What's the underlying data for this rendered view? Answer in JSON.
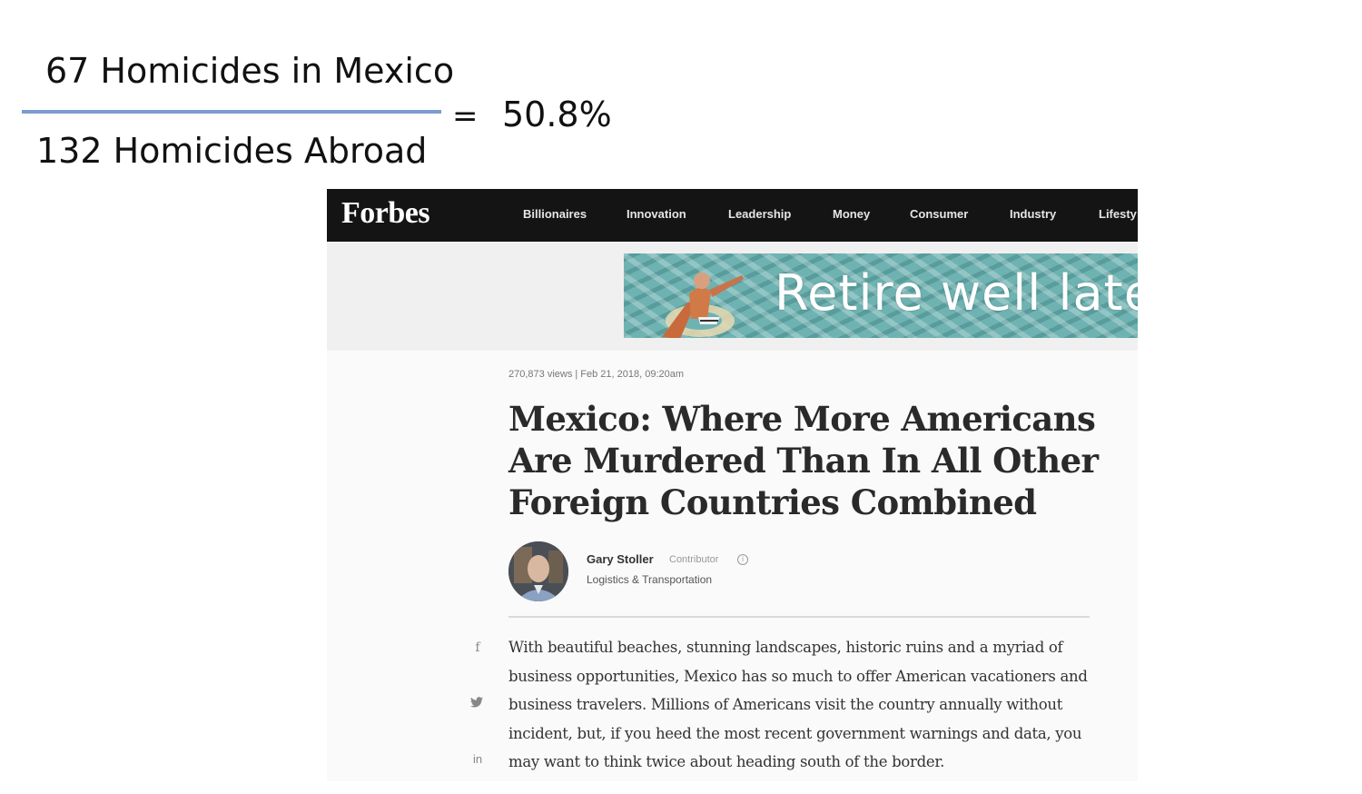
{
  "fraction": {
    "numerator": "67 Homicides in Mexico",
    "denominator": "132 Homicides Abroad",
    "equals": "=",
    "result": "50.8%"
  },
  "nav": {
    "logo": "Forbes",
    "items": [
      "Billionaires",
      "Innovation",
      "Leadership",
      "Money",
      "Consumer",
      "Industry",
      "Lifesty"
    ]
  },
  "ad": {
    "text": "Retire well late"
  },
  "article": {
    "meta": "270,873 views  |  Feb 21, 2018, 09:20am",
    "headline": "Mexico: Where More Americans Are Murdered Than In All Other Foreign Countries Combined",
    "author_name": "Gary Stoller",
    "author_role": "Contributor",
    "author_topic": "Logistics & Transportation",
    "body": "With beautiful beaches, stunning landscapes, historic ruins and a myriad of business opportunities, Mexico has so much to offer American vacationers and business travelers. Millions of Americans visit the country annually without incident, but, if you heed the most recent government warnings and data, you may want to think twice about heading south of the border."
  },
  "share": {
    "facebook": "f",
    "linkedin": "in"
  },
  "icons": {
    "facebook": "facebook-icon",
    "twitter": "twitter-icon",
    "linkedin": "linkedin-icon",
    "info": "info-icon"
  }
}
